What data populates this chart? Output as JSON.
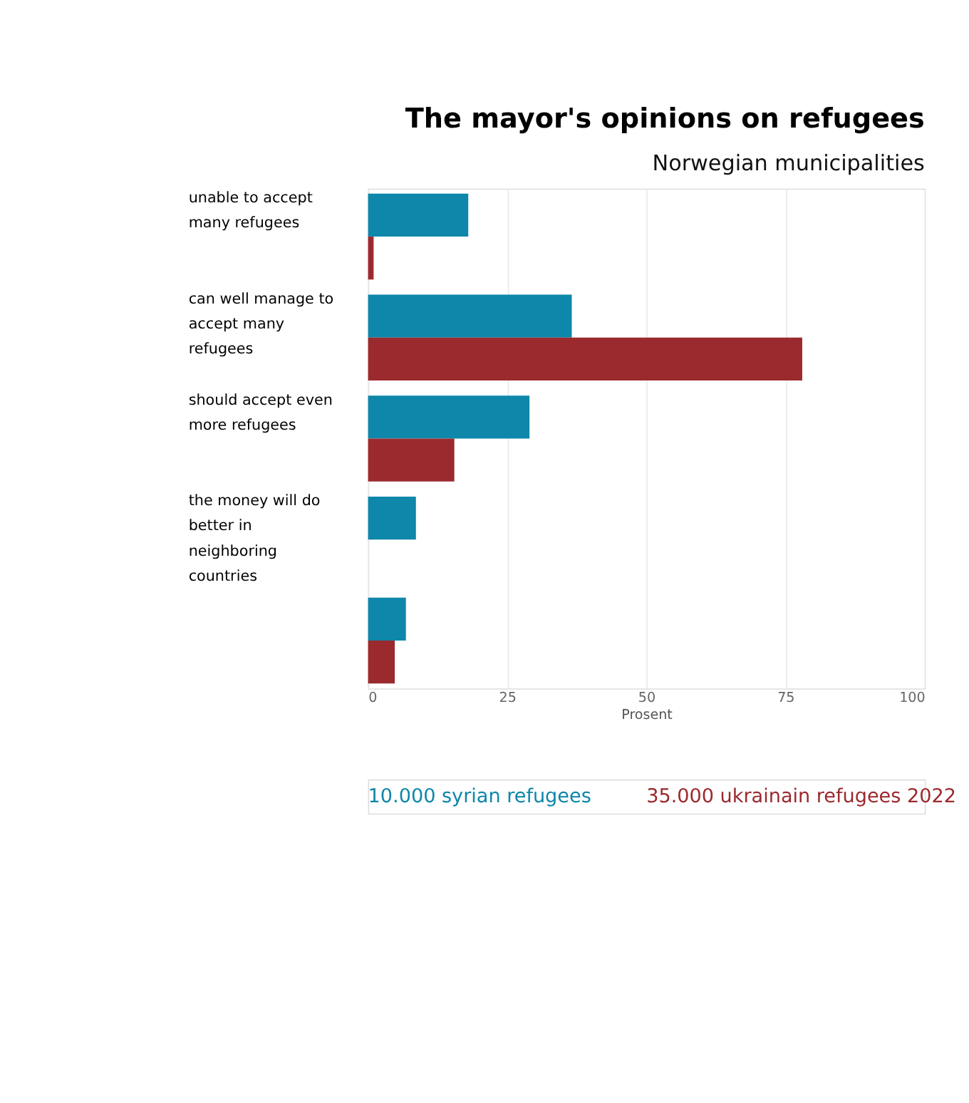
{
  "chart_data": {
    "type": "bar",
    "orientation": "horizontal",
    "title": "The mayor's opinions on refugees",
    "subtitle": "Norwegian municipalities",
    "xlabel": "Prosent",
    "categories": [
      "unable to accept many refugees",
      "can well manage to accept many refugees",
      "should accept even more refugees",
      "the money will do better in neighboring countries",
      null
    ],
    "series": [
      {
        "name": "10.000 syrian refugees",
        "color": "#0e87aa",
        "values": [
          18,
          36.6,
          29,
          8.6,
          6.8
        ]
      },
      {
        "name": "35.000 ukrainain refugees 2022",
        "color": "#9b2a2e",
        "values": [
          1,
          78,
          15.5,
          null,
          4.8
        ]
      }
    ],
    "xlim": [
      0,
      100
    ],
    "xticks": [
      0,
      25,
      50,
      75,
      100
    ],
    "grid": "x",
    "legend": "bottom"
  }
}
